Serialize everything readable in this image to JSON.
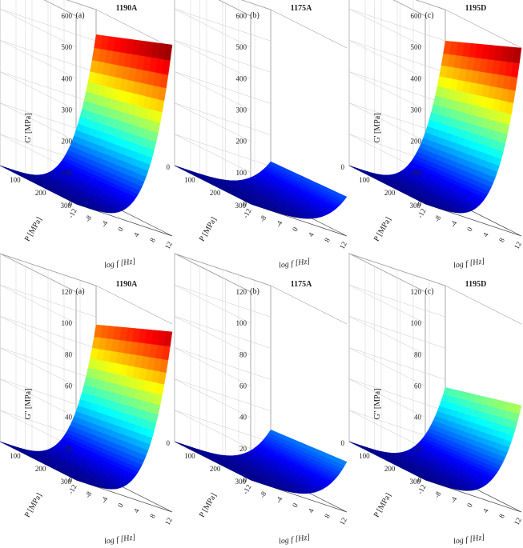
{
  "chart_data": [
    {
      "type": "surface3d",
      "panel_label": "(a)",
      "title": "1190A",
      "zlabel": "G' [MPa]",
      "ylabel": "P [MPa]",
      "xlabel": "log f [Hz]",
      "zlim": [
        0,
        600
      ],
      "z_ticks": [
        "0",
        "100",
        "200",
        "300",
        "400",
        "500",
        "600"
      ],
      "p_ticks": [
        "0",
        "100",
        "200",
        "300"
      ],
      "logf_ticks": [
        "-12",
        "-8",
        "-4",
        "0",
        "4",
        "8",
        "12"
      ],
      "logf_range": [
        -12,
        12
      ],
      "p_range": [
        0,
        300
      ],
      "value_at_logf_12": {
        "p0": 520,
        "p300": 610
      },
      "grid": true
    },
    {
      "type": "surface3d",
      "panel_label": "(b)",
      "title": "1175A",
      "zlabel": "",
      "ylabel": "P [MPa]",
      "xlabel": "log f [Hz]",
      "zlim": [
        0,
        600
      ],
      "z_ticks": [
        "0",
        "100",
        "200",
        "300",
        "400",
        "500",
        "600"
      ],
      "p_ticks": [
        "0",
        "100",
        "200",
        "300"
      ],
      "logf_ticks": [
        "-12",
        "-8",
        "-4",
        "0",
        "4",
        "8",
        "12"
      ],
      "logf_range": [
        -12,
        12
      ],
      "p_range": [
        0,
        300
      ],
      "value_at_logf_12": {
        "p0": 115,
        "p300": 125
      },
      "grid": true
    },
    {
      "type": "surface3d",
      "panel_label": "(c)",
      "title": "1195D",
      "zlabel": "G' [MPa]",
      "ylabel": "P [MPa]",
      "xlabel": "log f [Hz]",
      "zlim": [
        0,
        600
      ],
      "z_ticks": [
        "0",
        "100",
        "200",
        "300",
        "400",
        "500",
        "600"
      ],
      "p_ticks": [
        "0",
        "100",
        "200",
        "300"
      ],
      "logf_ticks": [
        "-12",
        "-8",
        "-4",
        "0",
        "4",
        "8",
        "12"
      ],
      "logf_range": [
        -12,
        12
      ],
      "p_range": [
        0,
        300
      ],
      "value_at_logf_12": {
        "p0": 500,
        "p300": 600
      },
      "grid": true
    },
    {
      "type": "surface3d",
      "panel_label": "(a)",
      "title": "1190A",
      "zlabel": "G'' [MPa]",
      "ylabel": "P [MPa]",
      "xlabel": "log f [Hz]",
      "zlim": [
        0,
        120
      ],
      "z_ticks": [
        "0",
        "20",
        "40",
        "60",
        "80",
        "100",
        "120"
      ],
      "p_ticks": [
        "0",
        "100",
        "200",
        "300"
      ],
      "logf_ticks": [
        "-12",
        "-8",
        "-4",
        "0",
        "4",
        "8",
        "12"
      ],
      "logf_range": [
        -12,
        12
      ],
      "p_range": [
        0,
        300
      ],
      "value_at_logf_12": {
        "p0": 95,
        "p300": 115
      },
      "grid": true
    },
    {
      "type": "surface3d",
      "panel_label": "(b)",
      "title": "1175A",
      "zlabel": "",
      "ylabel": "P [MPa]",
      "xlabel": "log f [Hz]",
      "zlim": [
        0,
        120
      ],
      "z_ticks": [
        "0",
        "20",
        "40",
        "60",
        "80",
        "100",
        "120"
      ],
      "p_ticks": [
        "0",
        "100",
        "200",
        "300"
      ],
      "logf_ticks": [
        "-12",
        "-8",
        "-4",
        "0",
        "4",
        "8",
        "12"
      ],
      "logf_range": [
        -12,
        12
      ],
      "p_range": [
        0,
        300
      ],
      "value_at_logf_12": {
        "p0": 28,
        "p300": 32
      },
      "grid": true
    },
    {
      "type": "surface3d",
      "panel_label": "(c)",
      "title": "1195D",
      "zlabel": "G'' [MPa]",
      "ylabel": "P [MPa]",
      "xlabel": "log f [Hz]",
      "zlim": [
        0,
        120
      ],
      "z_ticks": [
        "0",
        "20",
        "40",
        "60",
        "80",
        "100",
        "120"
      ],
      "p_ticks": [
        "0",
        "100",
        "200",
        "300"
      ],
      "logf_ticks": [
        "-12",
        "-8",
        "-4",
        "0",
        "4",
        "8",
        "12"
      ],
      "logf_range": [
        -12,
        12
      ],
      "p_range": [
        0,
        300
      ],
      "value_at_logf_12": {
        "p0": 55,
        "p300": 68
      },
      "grid": true
    }
  ],
  "colormap": [
    "#00008f",
    "#0000ff",
    "#0080ff",
    "#00ffff",
    "#80ff80",
    "#ffff00",
    "#ff8000",
    "#ff0000",
    "#800000"
  ]
}
